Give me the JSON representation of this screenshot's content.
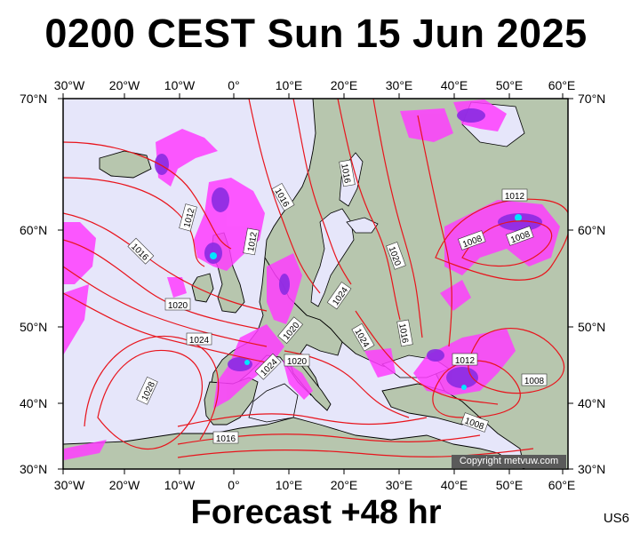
{
  "title": "0200 CEST Sun 15 Jun 2025",
  "footer": "Forecast +48 hr",
  "model_code": "US6",
  "copyright": "Copyright metvuw.com",
  "longitude_labels": [
    "30°W",
    "20°W",
    "10°W",
    "0°",
    "10°E",
    "20°E",
    "30°E",
    "40°E",
    "50°E",
    "60°E"
  ],
  "latitude_labels": [
    "70°N",
    "60°N",
    "50°N",
    "40°N",
    "30°N"
  ],
  "isobar_labels": [
    "1016",
    "1016",
    "1012",
    "1016",
    "1012",
    "1016",
    "1020",
    "1024",
    "1012",
    "1008",
    "1008",
    "1020",
    "1024",
    "1024",
    "1016",
    "1012",
    "1020",
    "1024",
    "1020",
    "1028",
    "1008",
    "1008",
    "1016"
  ],
  "colors": {
    "isobar": "#e8141c",
    "sea": "#e6e6fa",
    "land": "#b8c8b0",
    "precip_light": "#ff40ff",
    "precip_mid": "#8a2be2",
    "precip_heavy": "#00ffff"
  }
}
